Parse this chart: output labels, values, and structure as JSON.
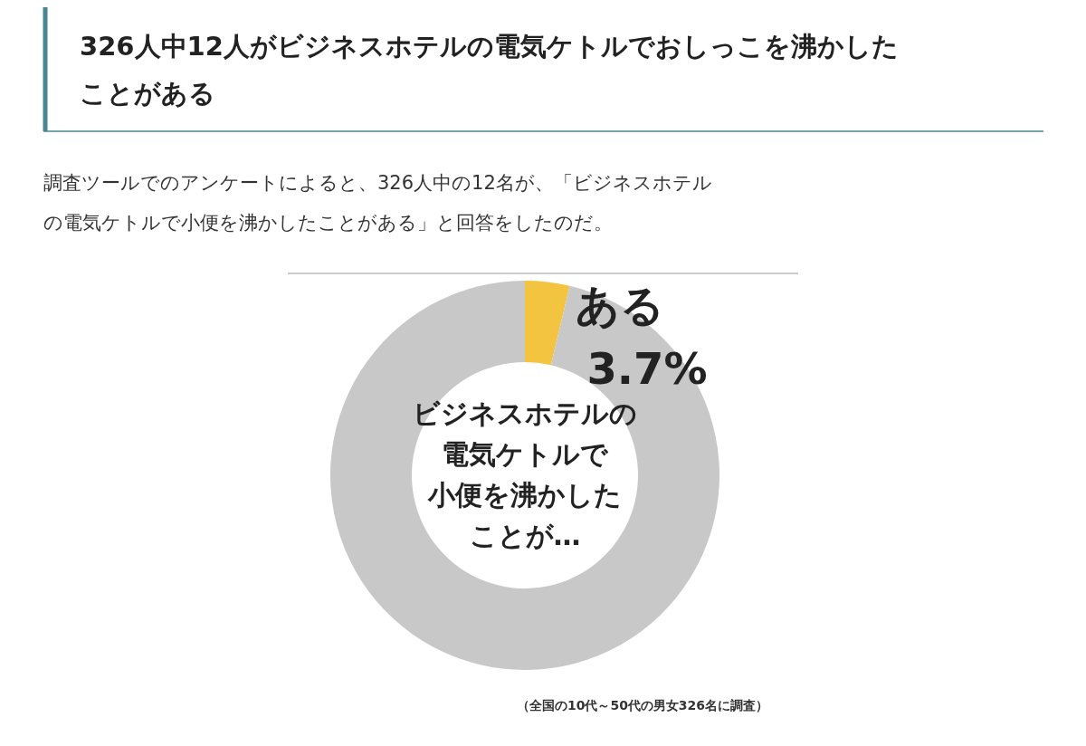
{
  "chart_data": {
    "type": "donut",
    "title": "326人中12人がビジネスホテルの電気ケトルでおしっこを沸かしたことがある",
    "subtitle": "調査ツールでのアンケートによると、326人中の12名が、「ビジネスホテルの電気ケトルで小便を沸かしたことがある」と回答をしたのだ。",
    "categories": [
      "ある",
      null
    ],
    "values": [
      3.7,
      96.3
    ],
    "colors": [
      "#f2c440",
      "#c8c8c8"
    ],
    "value_labels": [
      "3.7%",
      null
    ],
    "legend": false,
    "annotations": [
      "ビジネスホテルの",
      "電気ケトルで",
      "小便を沸かした",
      "ことが…",
      "（全国の10代～50代の男女326名に調査）"
    ]
  }
}
